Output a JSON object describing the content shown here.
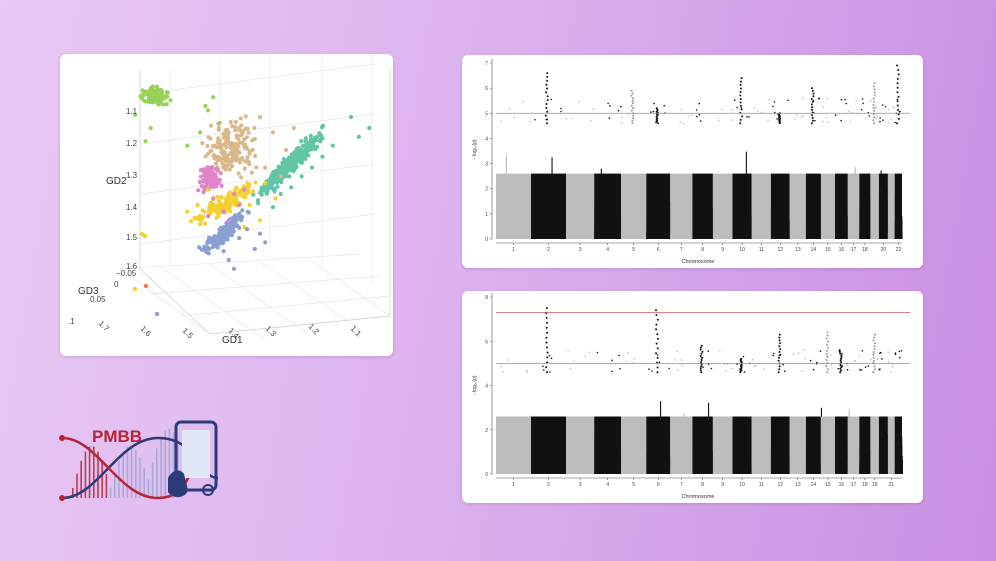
{
  "colors": {
    "green": "#98d05a",
    "teal": "#62c6a6",
    "tan": "#d9b98a",
    "yellow": "#f5d031",
    "pink": "#e085c8",
    "blue": "#8aa0d0",
    "orange": "#f07a4a",
    "grey": "#bdbdbd",
    "black": "#111111",
    "blue_line": "#8888dd",
    "red_line": "#dd5555",
    "logo_red": "#b52635",
    "logo_navy": "#2b3b7a"
  },
  "logo": {
    "text": "PMBB"
  },
  "chart_data": [
    {
      "type": "scatter",
      "name_hint": "3d-scatter",
      "xlabel": "GD1",
      "ylabel": "GD2",
      "zlabel": "GD3",
      "x_ticks": [
        "1.7",
        "1.6",
        "1.5",
        "1.4",
        "1.3",
        "1.2",
        "1.1"
      ],
      "y_ticks": [
        "1.1",
        "1.2",
        "1.3",
        "1.4",
        "1.5",
        "1.6"
      ],
      "z_ticks": [
        "−0.05",
        "0",
        "0.05",
        ".1"
      ],
      "clusters": [
        {
          "color": "green",
          "x": [
            0.29,
            0.08,
            0.32,
            0.22,
            0.02,
            0.34,
            0.12,
            0.27,
            0.06,
            0.3
          ],
          "y": [
            0.1,
            0.2,
            0.06,
            0.28,
            0.14,
            0.18,
            0.04,
            0.22,
            0.26,
            0.12
          ]
        },
        {
          "color": "teal",
          "x": [
            0.85,
            0.92,
            0.78,
            0.7,
            0.62,
            0.55,
            0.88,
            0.74,
            0.66,
            0.58
          ],
          "y": [
            0.15,
            0.2,
            0.28,
            0.38,
            0.47,
            0.56,
            0.24,
            0.33,
            0.42,
            0.5
          ]
        },
        {
          "color": "tan",
          "x": [
            0.42,
            0.48,
            0.55,
            0.6,
            0.52,
            0.45,
            0.58,
            0.5,
            0.4,
            0.63
          ],
          "y": [
            0.2,
            0.25,
            0.22,
            0.3,
            0.38,
            0.35,
            0.42,
            0.15,
            0.28,
            0.2
          ]
        },
        {
          "color": "yellow",
          "x": [
            0.38,
            0.46,
            0.52,
            0.34,
            0.3,
            0.44,
            0.26,
            0.5,
            0.56,
            0.22
          ],
          "y": [
            0.5,
            0.55,
            0.45,
            0.6,
            0.48,
            0.65,
            0.55,
            0.62,
            0.52,
            0.58
          ]
        },
        {
          "color": "pink",
          "x": [
            0.34,
            0.4,
            0.36,
            0.32,
            0.42,
            0.38,
            0.3,
            0.44
          ],
          "y": [
            0.45,
            0.5,
            0.58,
            0.52,
            0.55,
            0.62,
            0.6,
            0.48
          ]
        },
        {
          "color": "blue",
          "x": [
            0.42,
            0.48,
            0.38,
            0.45,
            0.52,
            0.36,
            0.4,
            0.5
          ],
          "y": [
            0.7,
            0.75,
            0.8,
            0.66,
            0.72,
            0.76,
            0.84,
            0.68
          ]
        }
      ]
    },
    {
      "type": "scatter",
      "name_hint": "manhattan-1",
      "xlabel": "Chromosome",
      "ylabel": "- log₁₀(p)",
      "ylim": [
        0,
        7
      ],
      "y_ticks": [
        0,
        1,
        2,
        3,
        4,
        5,
        6,
        7
      ],
      "suggestive_line": 5,
      "chromosome_labels": [
        "1",
        "2",
        "3",
        "4",
        "5",
        "6",
        "7",
        "8",
        "9",
        "10",
        "11",
        "12",
        "13",
        "14",
        "15",
        "16",
        "17",
        "18",
        "20",
        "22"
      ],
      "peaks": [
        {
          "chr": 2,
          "p": 6.6
        },
        {
          "chr": 10,
          "p": 6.4
        },
        {
          "chr": 14,
          "p": 6.0
        },
        {
          "chr": 19,
          "p": 6.2
        },
        {
          "chr": 22,
          "p": 6.9
        },
        {
          "chr": 12,
          "p": 5.0
        },
        {
          "chr": 5,
          "p": 5.9
        },
        {
          "chr": 6,
          "p": 5.2
        }
      ]
    },
    {
      "type": "scatter",
      "name_hint": "manhattan-2",
      "xlabel": "Chromosome",
      "ylabel": "- log₁₀(p)",
      "ylim": [
        0,
        8
      ],
      "y_ticks": [
        0,
        2,
        4,
        6,
        8
      ],
      "suggestive_line": 5,
      "genome_wide_line": 7.3,
      "chromosome_labels": [
        "1",
        "2",
        "3",
        "4",
        "5",
        "6",
        "7",
        "8",
        "9",
        "10",
        "11",
        "12",
        "13",
        "14",
        "15",
        "16",
        "17",
        "18",
        "19",
        "21"
      ],
      "peaks": [
        {
          "chr": 2,
          "p": 7.5
        },
        {
          "chr": 6,
          "p": 7.4
        },
        {
          "chr": 12,
          "p": 6.3
        },
        {
          "chr": 15,
          "p": 6.4
        },
        {
          "chr": 19,
          "p": 6.3
        },
        {
          "chr": 16,
          "p": 5.6
        },
        {
          "chr": 8,
          "p": 5.8
        },
        {
          "chr": 10,
          "p": 5.2
        }
      ]
    }
  ]
}
